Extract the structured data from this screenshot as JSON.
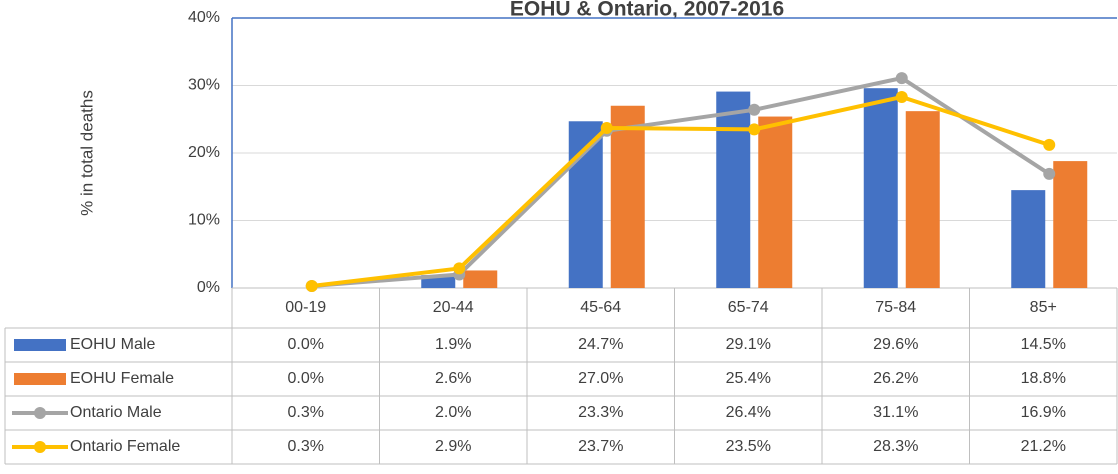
{
  "chart_data": {
    "type": "bar",
    "title": "EOHU & Ontario, 2007-2016",
    "y_label": "% in total deaths",
    "categories": [
      "00-19",
      "20-44",
      "45-64",
      "65-74",
      "75-84",
      "85+"
    ],
    "ylim": [
      0,
      40
    ],
    "yticks": [
      {
        "value": 0,
        "label": "0%"
      },
      {
        "value": 10,
        "label": "10%"
      },
      {
        "value": 20,
        "label": "20%"
      },
      {
        "value": 30,
        "label": "30%"
      },
      {
        "value": 40,
        "label": "40%"
      }
    ],
    "grid": true,
    "series": [
      {
        "name": "EOHU Male",
        "type": "bar",
        "color": "#4472c4",
        "values": [
          0.0,
          1.9,
          24.7,
          29.1,
          29.6,
          14.5
        ],
        "value_labels": [
          "0.0%",
          "1.9%",
          "24.7%",
          "29.1%",
          "29.6%",
          "14.5%"
        ]
      },
      {
        "name": "EOHU Female",
        "type": "bar",
        "color": "#ed7d31",
        "values": [
          0.0,
          2.6,
          27.0,
          25.4,
          26.2,
          18.8
        ],
        "value_labels": [
          "0.0%",
          "2.6%",
          "27.0%",
          "25.4%",
          "26.2%",
          "18.8%"
        ]
      },
      {
        "name": "Ontario Male",
        "type": "line",
        "color": "#a5a5a5",
        "values": [
          0.3,
          2.0,
          23.3,
          26.4,
          31.1,
          16.9
        ],
        "value_labels": [
          "0.3%",
          "2.0%",
          "23.3%",
          "26.4%",
          "31.1%",
          "16.9%"
        ]
      },
      {
        "name": "Ontario Female",
        "type": "line",
        "color": "#ffc000",
        "values": [
          0.3,
          2.9,
          23.7,
          23.5,
          28.3,
          21.2
        ],
        "value_labels": [
          "0.3%",
          "2.9%",
          "23.7%",
          "23.5%",
          "28.3%",
          "21.2%"
        ]
      }
    ]
  }
}
